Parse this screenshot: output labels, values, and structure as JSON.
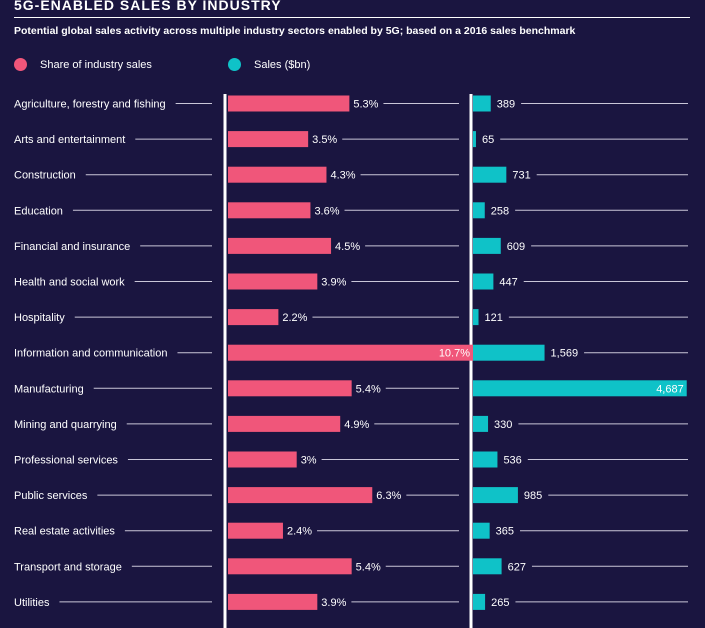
{
  "colors": {
    "background": "#1a1540",
    "share": "#f0567a",
    "sales": "#0fc2c8",
    "text": "#ffffff",
    "leader": "#c9c6d8"
  },
  "header": {
    "title": "5G-ENABLED SALES BY INDUSTRY",
    "subtitle": "Potential global sales activity across multiple industry sectors enabled by 5G; based on a 2016 sales benchmark"
  },
  "legend": {
    "share_label": "Share of industry sales",
    "sales_label": "Sales ($bn)"
  },
  "chart_data": {
    "type": "bar",
    "categories": [
      "Agriculture, forestry and fishing",
      "Arts and entertainment",
      "Construction",
      "Education",
      "Financial and insurance",
      "Health and social work",
      "Hospitality",
      "Information and communication",
      "Manufacturing",
      "Mining and quarrying",
      "Professional services",
      "Public services",
      "Real estate activities",
      "Transport and storage",
      "Utilities"
    ],
    "series": [
      {
        "name": "Share of industry sales",
        "values": [
          5.3,
          3.5,
          4.3,
          3.6,
          4.5,
          3.9,
          2.2,
          10.7,
          5.4,
          4.9,
          3,
          6.3,
          2.4,
          5.4,
          3.9
        ],
        "labels": [
          "5.3%",
          "3.5%",
          "4.3%",
          "3.6%",
          "4.5%",
          "3.9%",
          "2.2%",
          "10.7%",
          "5.4%",
          "4.9%",
          "3%",
          "6.3%",
          "2.4%",
          "5.4%",
          "3.9%"
        ]
      },
      {
        "name": "Sales ($bn)",
        "values": [
          389,
          65,
          731,
          258,
          609,
          447,
          121,
          1569,
          4687,
          330,
          536,
          985,
          365,
          627,
          265
        ],
        "labels": [
          "389",
          "65",
          "731",
          "258",
          "609",
          "447",
          "121",
          "1,569",
          "4,687",
          "330",
          "536",
          "985",
          "365",
          "627",
          "265"
        ]
      }
    ],
    "legend_position": "top-left",
    "grid": false
  }
}
